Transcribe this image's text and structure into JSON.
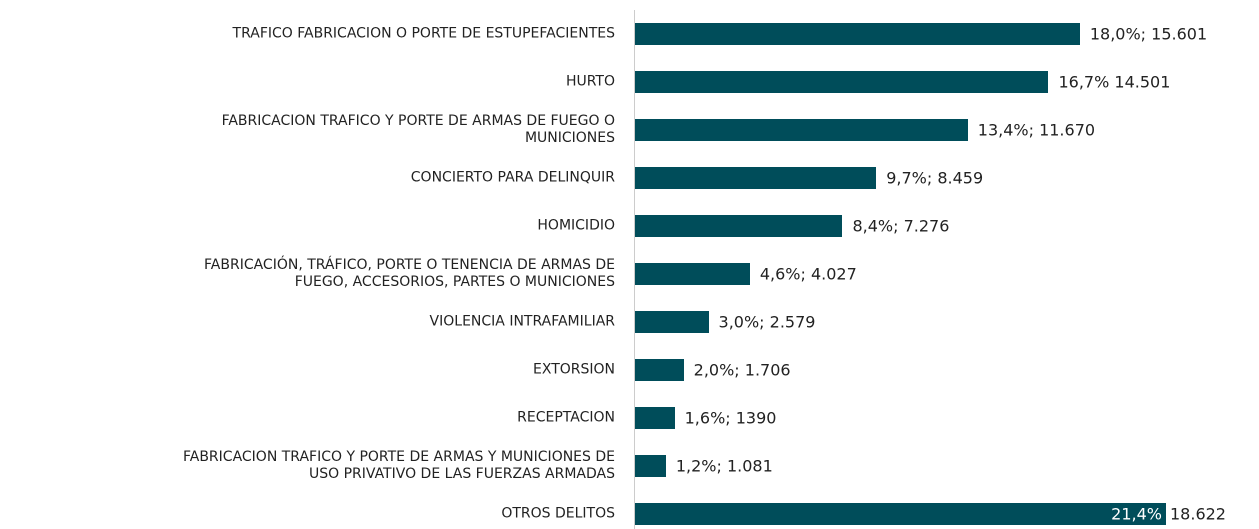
{
  "chart_data": {
    "type": "bar",
    "orientation": "horizontal",
    "color": "#004d5a",
    "categories": [
      "TRAFICO FABRICACION O PORTE DE ESTUPEFACIENTES",
      "HURTO",
      "FABRICACION TRAFICO Y PORTE DE ARMAS DE FUEGO O\nMUNICIONES",
      "CONCIERTO PARA DELINQUIR",
      "HOMICIDIO",
      "FABRICACIÓN, TRÁFICO, PORTE O TENENCIA DE ARMAS DE\nFUEGO, ACCESORIOS, PARTES O MUNICIONES",
      "VIOLENCIA INTRAFAMILIAR",
      "EXTORSION",
      "RECEPTACION",
      "FABRICACION  TRAFICO Y PORTE DE ARMAS Y MUNICIONES DE\nUSO PRIVATIVO DE LAS FUERZAS ARMADAS",
      "OTROS DELITOS"
    ],
    "values": [
      15601,
      14501,
      11670,
      8459,
      7276,
      4027,
      2579,
      1706,
      1390,
      1081,
      18622
    ],
    "value_labels": [
      "18,0%;  15.601",
      "16,7%  14.501",
      "13,4%;  11.670",
      "9,7%;  8.459",
      "8,4%;  7.276",
      "4,6%;  4.027",
      "3,0%;  2.579",
      "2,0%;  1.706",
      "1,6%;  1390",
      "1,2%; 1.081",
      [
        "21,4%",
        "18.622"
      ]
    ]
  }
}
